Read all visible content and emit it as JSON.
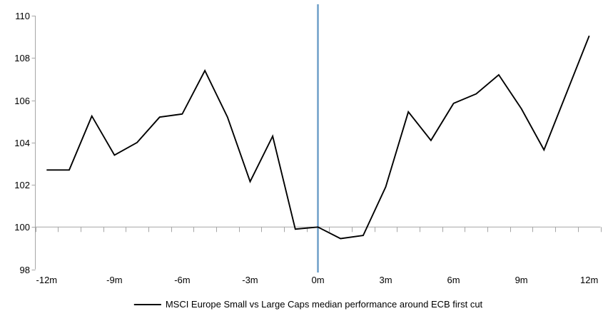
{
  "chart_data": {
    "type": "line",
    "title": "",
    "legend": "MSCI Europe Small vs Large Caps median performance around ECB first cut",
    "xlabel": "",
    "ylabel": "",
    "x": [
      -12,
      -11,
      -10,
      -9,
      -8,
      -7,
      -6,
      -5,
      -4,
      -3,
      -2,
      -1,
      0,
      1,
      2,
      3,
      4,
      5,
      6,
      7,
      8,
      9,
      10,
      11,
      12
    ],
    "series": [
      {
        "name": "MSCI Europe Small vs Large Caps median performance around ECB first cut",
        "values": [
          102.7,
          102.7,
          105.25,
          103.4,
          104.0,
          105.2,
          105.35,
          107.4,
          105.2,
          102.15,
          104.3,
          99.9,
          100.0,
          99.45,
          99.6,
          101.9,
          105.45,
          104.1,
          105.85,
          106.3,
          107.2,
          105.6,
          103.65,
          106.35,
          109.05
        ]
      }
    ],
    "xlim": [
      -12,
      12
    ],
    "ylim": [
      98,
      110
    ],
    "y_ticks": [
      98,
      100,
      102,
      104,
      106,
      108,
      110
    ],
    "x_ticks": [
      {
        "pos": -12,
        "label": "-12m"
      },
      {
        "pos": -9,
        "label": "-9m"
      },
      {
        "pos": -6,
        "label": "-6m"
      },
      {
        "pos": -3,
        "label": "-3m"
      },
      {
        "pos": 0,
        "label": "0m"
      },
      {
        "pos": 3,
        "label": "3m"
      },
      {
        "pos": 6,
        "label": "6m"
      },
      {
        "pos": 9,
        "label": "9m"
      },
      {
        "pos": 12,
        "label": "12m"
      }
    ],
    "baseline_value": 100,
    "event_line_x": 0,
    "grid": "baseline-only",
    "legend_position": "bottom-center",
    "colors": {
      "series": "#000000",
      "event_line": "#6f9fc8",
      "axis": "#a6a6a6",
      "text": "#000000",
      "background": "#ffffff"
    }
  }
}
